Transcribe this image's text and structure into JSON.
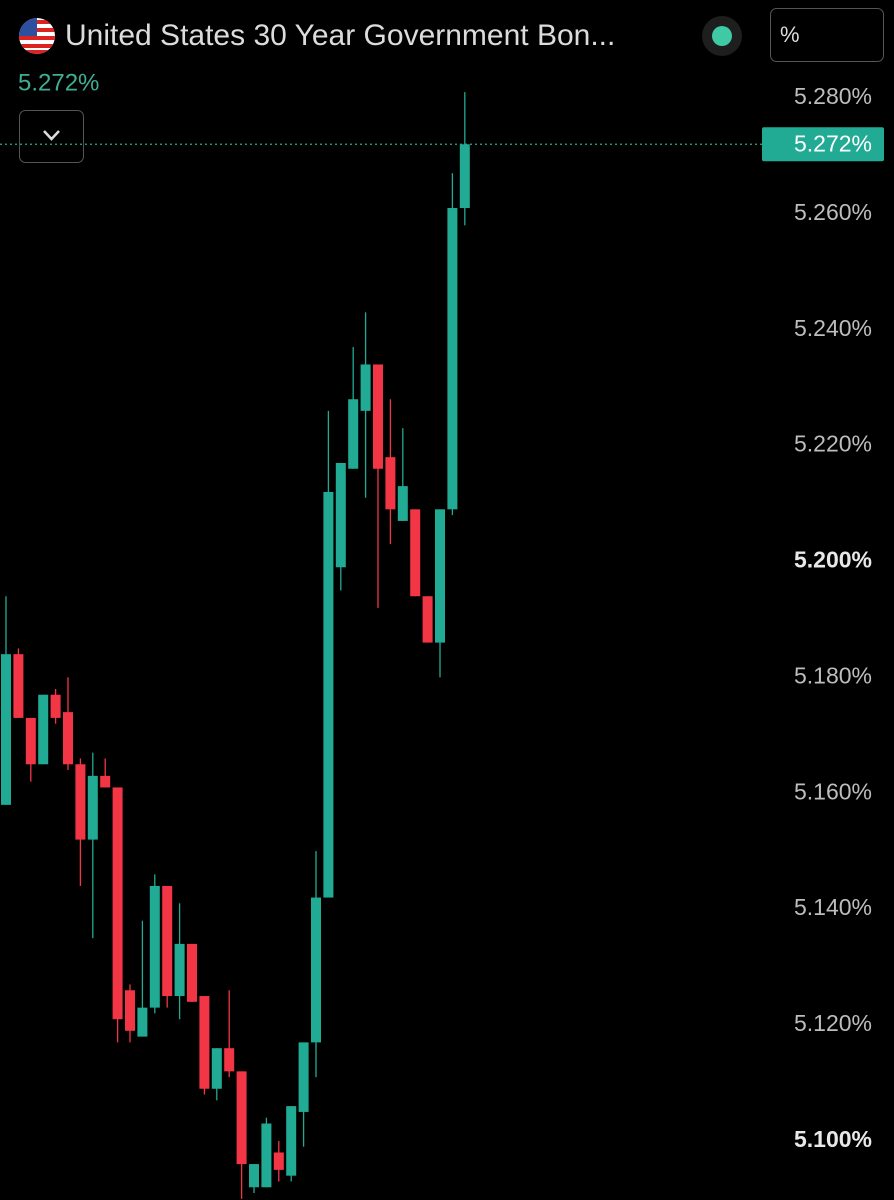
{
  "chart_data": {
    "type": "candlestick",
    "title": "United States 30 Year Government Bon...",
    "unit_button": "%",
    "last_price": 5.272,
    "last_price_label": "5.272%",
    "up_color": "#22ab94",
    "down_color": "#f23645",
    "open": [
      5.158,
      5.184,
      5.173,
      5.165,
      5.177,
      5.174,
      5.165,
      5.152,
      5.163,
      5.161,
      5.126,
      5.118,
      5.123,
      5.144,
      5.125,
      5.134,
      5.125,
      5.109,
      5.116,
      5.112,
      5.092,
      5.092,
      5.098,
      5.094,
      5.105,
      5.117,
      5.142,
      5.199,
      5.216,
      5.226,
      5.234,
      5.218,
      5.207,
      5.209,
      5.194,
      5.186,
      5.209,
      5.261
    ],
    "high": [
      5.194,
      5.185,
      5.173,
      5.177,
      5.178,
      5.18,
      5.166,
      5.167,
      5.166,
      5.161,
      5.127,
      5.138,
      5.146,
      5.144,
      5.141,
      5.134,
      5.125,
      5.116,
      5.126,
      5.112,
      5.096,
      5.104,
      5.1,
      5.106,
      5.117,
      5.15,
      5.226,
      5.217,
      5.237,
      5.243,
      5.234,
      5.228,
      5.223,
      5.209,
      5.194,
      5.209,
      5.267,
      5.281
    ],
    "low": [
      5.158,
      5.173,
      5.162,
      5.165,
      5.172,
      5.164,
      5.144,
      5.135,
      5.161,
      5.117,
      5.117,
      5.118,
      5.122,
      5.123,
      5.121,
      5.124,
      5.108,
      5.107,
      5.111,
      5.09,
      5.091,
      5.092,
      5.093,
      5.093,
      5.099,
      5.111,
      5.142,
      5.195,
      5.216,
      5.211,
      5.192,
      5.203,
      5.207,
      5.194,
      5.186,
      5.18,
      5.208,
      5.258
    ],
    "close": [
      5.184,
      5.173,
      5.165,
      5.177,
      5.173,
      5.165,
      5.152,
      5.163,
      5.161,
      5.121,
      5.119,
      5.123,
      5.144,
      5.125,
      5.134,
      5.124,
      5.109,
      5.116,
      5.112,
      5.096,
      5.096,
      5.103,
      5.095,
      5.106,
      5.117,
      5.142,
      5.212,
      5.217,
      5.228,
      5.234,
      5.216,
      5.209,
      5.213,
      5.194,
      5.186,
      5.209,
      5.261,
      5.272
    ],
    "ylim": [
      5.0898,
      5.2969
    ],
    "yticks": [
      {
        "value": 5.28,
        "label": "5.280%"
      },
      {
        "value": 5.26,
        "label": "5.260%"
      },
      {
        "value": 5.24,
        "label": "5.240%"
      },
      {
        "value": 5.22,
        "label": "5.220%"
      },
      {
        "value": 5.2,
        "label": "5.200%"
      },
      {
        "value": 5.18,
        "label": "5.180%"
      },
      {
        "value": 5.16,
        "label": "5.160%"
      },
      {
        "value": 5.14,
        "label": "5.140%"
      },
      {
        "value": 5.12,
        "label": "5.120%"
      },
      {
        "value": 5.1,
        "label": "5.100%"
      }
    ]
  }
}
